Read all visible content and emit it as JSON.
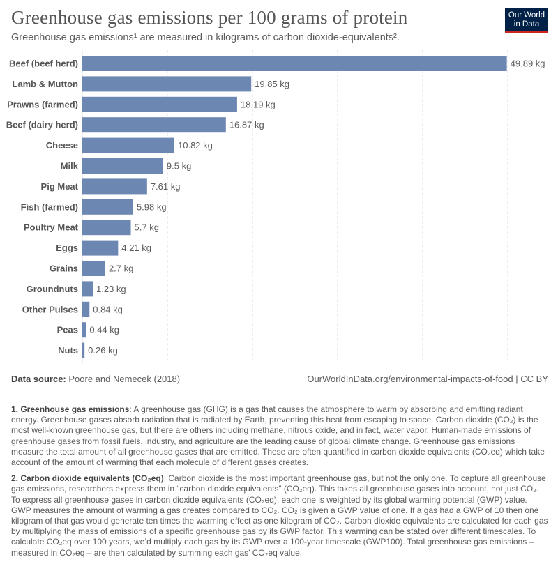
{
  "header": {
    "title": "Greenhouse gas emissions per 100 grams of protein",
    "subtitle": "Greenhouse gas emissions¹ are measured in kilograms of carbon dioxide-equivalents².",
    "logo": "Our World in Data"
  },
  "colors": {
    "bar": "#6d87b3",
    "grid": "#dddddd"
  },
  "chart_data": {
    "type": "bar",
    "orientation": "horizontal",
    "title": "Greenhouse gas emissions per 100 grams of protein",
    "unit": "kg",
    "xlim": [
      0,
      50
    ],
    "gridlines": [
      0,
      10,
      20,
      30,
      40,
      50
    ],
    "categories": [
      "Beef (beef herd)",
      "Lamb & Mutton",
      "Prawns (farmed)",
      "Beef (dairy herd)",
      "Cheese",
      "Milk",
      "Pig Meat",
      "Fish (farmed)",
      "Poultry Meat",
      "Eggs",
      "Grains",
      "Groundnuts",
      "Other Pulses",
      "Peas",
      "Nuts"
    ],
    "values": [
      49.89,
      19.85,
      18.19,
      16.87,
      10.82,
      9.5,
      7.61,
      5.98,
      5.7,
      4.21,
      2.7,
      1.23,
      0.84,
      0.44,
      0.26
    ],
    "labels": [
      "49.89 kg",
      "19.85 kg",
      "18.19 kg",
      "16.87 kg",
      "10.82 kg",
      "9.5 kg",
      "7.61 kg",
      "5.98 kg",
      "5.7 kg",
      "4.21 kg",
      "2.7 kg",
      "1.23 kg",
      "0.84 kg",
      "0.44 kg",
      "0.26 kg"
    ]
  },
  "footer": {
    "source_label": "Data source:",
    "source": "Poore and Nemecek (2018)",
    "link": "OurWorldInData.org/environmental-impacts-of-food",
    "sep": "|",
    "license": "CC BY"
  },
  "notes": [
    {
      "head": "1. Greenhouse gas emissions",
      "body": ": A greenhouse gas (GHG) is a gas that causes the atmosphere to warm by absorbing and emitting radiant energy. Greenhouse gases absorb radiation that is radiated by Earth, preventing this heat from escaping to space. Carbon dioxide (CO₂) is the most well-known greenhouse gas, but there are others including methane, nitrous oxide, and in fact, water vapor. Human-made emissions of greenhouse gases from fossil fuels, industry, and agriculture are the leading cause of global climate change. Greenhouse gas emissions measure the total amount of all greenhouse gases that are emitted. These are often quantified in carbon dioxide equivalents (CO₂eq) which take account of the amount of warming that each molecule of different gases creates."
    },
    {
      "head": "2. Carbon dioxide equivalents (CO₂eq)",
      "body": ": Carbon dioxide is the most important greenhouse gas, but not the only one. To capture all greenhouse gas emissions, researchers express them in “carbon dioxide equivalents” (CO₂eq). This takes all greenhouse gases into account, not just CO₂. To express all greenhouse gases in carbon dioxide equivalents (CO₂eq), each one is weighted by its global warming potential (GWP) value. GWP measures the amount of warming a gas creates compared to CO₂. CO₂ is given a GWP value of one. If a gas had a GWP of 10 then one kilogram of that gas would generate ten times the warming effect as one kilogram of CO₂. Carbon dioxide equivalents are calculated for each gas by multiplying the mass of emissions of a specific greenhouse gas by its GWP factor. This warming can be stated over different timescales. To calculate CO₂eq over 100 years, we’d multiply each gas by its GWP over a 100-year timescale (GWP100). Total greenhouse gas emissions – measured in CO₂eq – are then calculated by summing each gas’ CO₂eq value."
    }
  ]
}
